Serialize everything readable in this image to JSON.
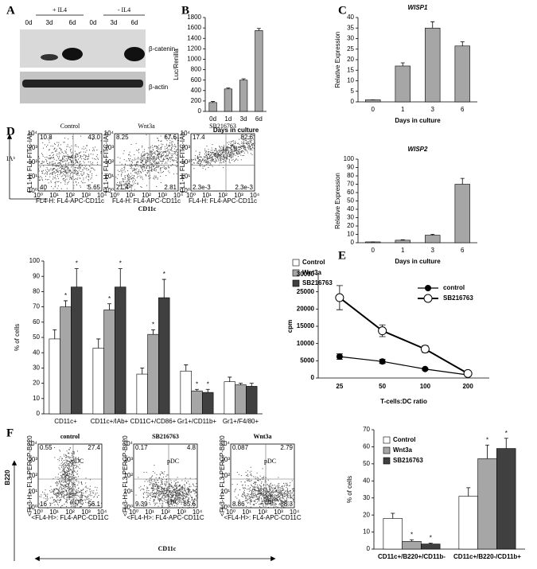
{
  "panels": [
    "A",
    "B",
    "C",
    "D",
    "E",
    "F"
  ],
  "blot": {
    "groups": [
      "+ IL4",
      "- IL4"
    ],
    "lanes": [
      "0d",
      "3d",
      "6d",
      "0d",
      "3d",
      "6d"
    ],
    "proteins": [
      "β-catenin",
      "β-actin"
    ]
  },
  "flow": {
    "ticks": [
      "10⁰",
      "10¹",
      "10²",
      "10³",
      "10⁴"
    ],
    "D": {
      "ylabel": "FL1-H: FL1-FITC-IAb",
      "xlabel": "FL4-H: FL4-APC-CD11c",
      "y_marker": "IAᵇ",
      "x_marker": "CD11c",
      "plots": [
        {
          "title": "Control",
          "quadrants": [
            "10.8",
            "43.0",
            "40",
            "5.65"
          ]
        },
        {
          "title": "Wnt3a",
          "quadrants": [
            "8.25",
            "67.6",
            "21.4",
            "2.81"
          ]
        },
        {
          "title": "SB216763",
          "quadrants": [
            "17.4",
            "82.6",
            "2.3e-3",
            "2.3e-3"
          ]
        }
      ]
    },
    "F": {
      "ylabel": "<FL3-H>: FL3-PERCP-B220",
      "xlabel": "<FL4-H>: FL4-APC-CD11C",
      "y_marker": "B220",
      "x_marker": "CD11c",
      "populations": [
        "pDC",
        "cDC"
      ],
      "plots": [
        {
          "title": "control",
          "quadrants": [
            "0.55",
            "27.4",
            "16",
            "56.1"
          ]
        },
        {
          "title": "SB216763",
          "quadrants": [
            "0.17",
            "4.8",
            "9.39",
            "85.6"
          ]
        },
        {
          "title": "Wnt3a",
          "quadrants": [
            "0.087",
            "2.79",
            "8.86",
            "88.3"
          ]
        }
      ]
    }
  },
  "chart_data": [
    {
      "type": "bar",
      "ylabel": "Luc/Renilla",
      "xlabel": "Days in culture",
      "categories": [
        "0d",
        "1d",
        "3d",
        "6d"
      ],
      "values": [
        170,
        430,
        600,
        1550
      ],
      "errors": [
        20,
        20,
        25,
        40
      ],
      "color": "#a6a6a6",
      "ylim": [
        0,
        1800
      ],
      "yticks": [
        0,
        200,
        400,
        600,
        800,
        1000,
        1200,
        1400,
        1600,
        1800
      ]
    },
    {
      "type": "bar",
      "title": "WISP1",
      "ylabel": "Relative Expression",
      "xlabel": "Days in culture",
      "categories": [
        "0",
        "1",
        "3",
        "6"
      ],
      "values": [
        1,
        17,
        35,
        26.5
      ],
      "errors": [
        0,
        1.5,
        3,
        2
      ],
      "color": "#a6a6a6",
      "ylim": [
        0,
        40
      ],
      "yticks": [
        0,
        5,
        10,
        15,
        20,
        25,
        30,
        35,
        40
      ]
    },
    {
      "type": "bar",
      "title": "WISP2",
      "ylabel": "Relative Expression",
      "xlabel": "Days in culture",
      "categories": [
        "0",
        "1",
        "3",
        "6"
      ],
      "values": [
        1,
        3,
        9,
        70
      ],
      "errors": [
        0,
        0.5,
        1,
        7
      ],
      "color": "#a6a6a6",
      "ylim": [
        0,
        100
      ],
      "yticks": [
        0,
        10,
        20,
        30,
        40,
        50,
        60,
        70,
        80,
        90,
        100
      ]
    },
    {
      "type": "bar",
      "ylabel": "% of cells",
      "categories": [
        "CD11c+",
        "CD11c+/IAb+",
        "CD11C+/CD86+",
        "Gr1+/CD11b+",
        "Gr1+/F4/80+"
      ],
      "series": [
        {
          "name": "Control",
          "color": "#ffffff",
          "values": [
            49,
            43,
            26,
            28,
            21
          ],
          "errors": [
            6,
            6,
            4,
            4,
            3
          ],
          "annotations": [
            null,
            null,
            null,
            null,
            null
          ]
        },
        {
          "name": "Wnt3a",
          "color": "#a6a6a6",
          "values": [
            70,
            68,
            52,
            15,
            19
          ],
          "errors": [
            4,
            4,
            3,
            1,
            1
          ],
          "annotations": [
            "*",
            "*",
            "*",
            "*",
            null
          ]
        },
        {
          "name": "SB216763",
          "color": "#404040",
          "values": [
            83,
            83,
            76,
            14,
            18
          ],
          "errors": [
            12,
            12,
            12,
            2,
            2
          ],
          "annotations": [
            "*",
            "*",
            "*",
            "*",
            null
          ]
        }
      ],
      "ylim": [
        0,
        100
      ],
      "yticks": [
        0,
        10,
        20,
        30,
        40,
        50,
        60,
        70,
        80,
        90,
        100
      ],
      "legend": "right"
    },
    {
      "type": "line",
      "ylabel": "cpm",
      "xlabel": "T-cells:DC ratio",
      "categories": [
        "25",
        "50",
        "100",
        "200"
      ],
      "series": [
        {
          "name": "control",
          "color": "#000000",
          "values": [
            6200,
            4800,
            2600,
            900
          ],
          "errors": [
            800,
            600,
            300,
            200
          ]
        },
        {
          "name": "SB216763",
          "color": "#ffffff",
          "values": [
            23300,
            13700,
            8400,
            1300
          ],
          "errors": [
            3500,
            1700,
            1000,
            300
          ]
        }
      ],
      "ylim": [
        0,
        30000
      ],
      "yticks": [
        0,
        5000,
        10000,
        15000,
        20000,
        25000,
        30000
      ],
      "legend": "upper right"
    },
    {
      "type": "bar",
      "ylabel": "% of cells",
      "categories": [
        "CD11c+/B220+/CD11b-",
        "CD11c+/B220-/CD11b+"
      ],
      "series": [
        {
          "name": "Control",
          "color": "#ffffff",
          "values": [
            18,
            31
          ],
          "errors": [
            3,
            5
          ],
          "annotations": [
            null,
            null
          ]
        },
        {
          "name": "Wnt3a",
          "color": "#a6a6a6",
          "values": [
            4.5,
            53
          ],
          "errors": [
            1,
            8
          ],
          "annotations": [
            "*",
            "*"
          ]
        },
        {
          "name": "SB216763",
          "color": "#404040",
          "values": [
            3,
            59
          ],
          "errors": [
            0.5,
            6
          ],
          "annotations": [
            "*",
            "*"
          ]
        }
      ],
      "ylim": [
        0,
        70
      ],
      "yticks": [
        0,
        10,
        20,
        30,
        40,
        50,
        60,
        70
      ],
      "legend": "upper left"
    }
  ]
}
